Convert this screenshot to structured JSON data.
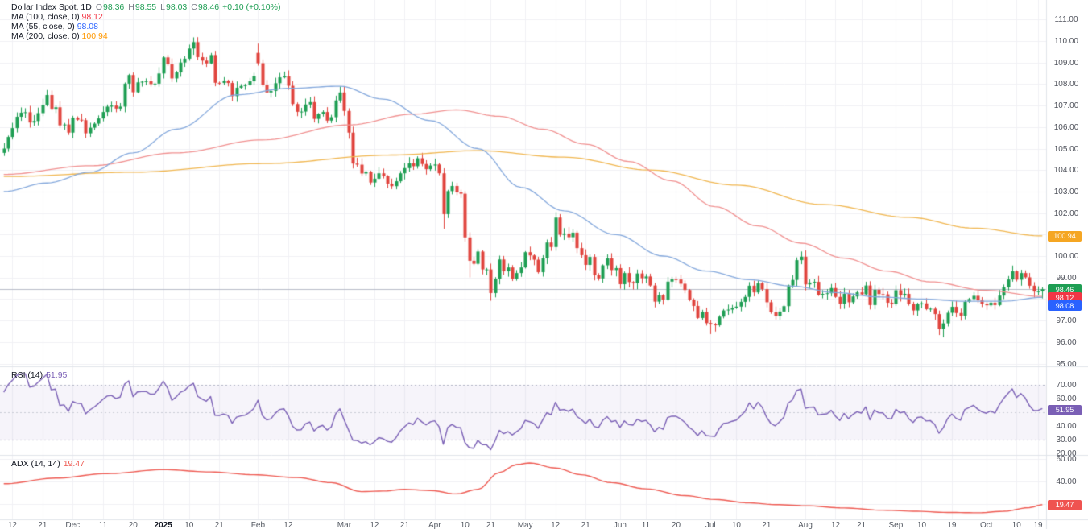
{
  "legend": {
    "title": "Dollar Index Spot, 1D",
    "ohlc": [
      [
        "O",
        "98.36"
      ],
      [
        "H",
        "98.55"
      ],
      [
        "L",
        "98.03"
      ],
      [
        "C",
        "98.46"
      ]
    ],
    "change": "+0.10 (+0.10%)",
    "ma_rows": [
      {
        "label": "MA (100, close, 0)",
        "value": "98.12",
        "color": "#f23645"
      },
      {
        "label": "MA (55, close, 0)",
        "value": "98.08",
        "color": "#2962ff"
      },
      {
        "label": "MA (200, close, 0)",
        "value": "100.94",
        "color": "#ff9800"
      }
    ]
  },
  "rsi_pane": {
    "label": "RSI (14)",
    "value": "51.95"
  },
  "adx_pane": {
    "label": "ADX (14, 14)",
    "value": "19.47"
  },
  "colors": {
    "up": "#1e9e53",
    "down": "#e0443e",
    "ma55_line": "#84a8dc",
    "ma100_line": "#f09090",
    "ma200_line": "#f0b64f",
    "rsi_line": "#7a5fb5",
    "adx_line": "#ee5a52",
    "grid": "#f0f1f5",
    "divider": "#e1e4ea",
    "band_fill": "rgba(122,95,191,0.07)",
    "band_edge": "#b0b3c4",
    "band_mid": "#c9cbd6",
    "price_line": "#b8bcc9",
    "badge_orange": "#f5a623",
    "badge_green": "#1e9e53",
    "badge_red": "#f23645",
    "badge_blue": "#2962ff",
    "badge_purple": "#7a5fb5",
    "badge_salmon": "#ef5350",
    "ohlc_text": "#1e9e53",
    "axis_text": "#50535c"
  },
  "axes": {
    "price_ticks": [
      111,
      110,
      109,
      108,
      107,
      106,
      105,
      104,
      103,
      102,
      101,
      100,
      99,
      98,
      97,
      96,
      95
    ],
    "rsi_ticks": [
      70,
      60,
      50,
      40,
      30,
      20
    ],
    "adx_ticks": [
      60,
      40,
      20
    ],
    "time_labels": [
      [
        "12",
        2
      ],
      [
        "21",
        9
      ],
      [
        "Dec",
        16
      ],
      [
        "11",
        23
      ],
      [
        "20",
        30
      ],
      [
        "2025",
        37
      ],
      [
        "10",
        43
      ],
      [
        "21",
        50
      ],
      [
        "Feb",
        59
      ],
      [
        "12",
        66
      ],
      [
        "Mar",
        79
      ],
      [
        "12",
        86
      ],
      [
        "21",
        93
      ],
      [
        "Apr",
        100
      ],
      [
        "10",
        107
      ],
      [
        "21",
        113
      ],
      [
        "May",
        121
      ],
      [
        "12",
        128
      ],
      [
        "21",
        135
      ],
      [
        "Jun",
        143
      ],
      [
        "11",
        149
      ],
      [
        "20",
        156
      ],
      [
        "Jul",
        164
      ],
      [
        "10",
        170
      ],
      [
        "21",
        177
      ],
      [
        "Aug",
        186
      ],
      [
        "12",
        193
      ],
      [
        "21",
        199
      ],
      [
        "Sep",
        207
      ],
      [
        "10",
        213
      ],
      [
        "19",
        220
      ],
      [
        "Oct",
        228
      ],
      [
        "10",
        235
      ],
      [
        "19",
        240
      ]
    ],
    "bold_time_label": "2025"
  },
  "badges": [
    {
      "pane": "main",
      "value": 100.94,
      "text": "100.94",
      "color": "#f5a623"
    },
    {
      "pane": "main",
      "value": 98.46,
      "text": "98.46",
      "color": "#1e9e53"
    },
    {
      "pane": "main",
      "value": 98.12,
      "text": "98.12",
      "color": "#f23645"
    },
    {
      "pane": "main",
      "value": 98.08,
      "text": "98.08",
      "color": "#2962ff"
    },
    {
      "pane": "rsi",
      "value": 51.95,
      "text": "51.95",
      "color": "#7a5fb5"
    },
    {
      "pane": "adx",
      "value": 19.47,
      "text": "19.47",
      "color": "#ef5350"
    }
  ],
  "chart_data": {
    "type": "candlestick",
    "symbol": "Dollar Index Spot",
    "interval": "1D",
    "last_candle": {
      "o": 98.36,
      "h": 98.55,
      "l": 98.03,
      "c": 98.46,
      "change_pct": 0.1
    },
    "price_axis_range": [
      94.87,
      111.91
    ],
    "rsi_axis_range": [
      19.4,
      82.9
    ],
    "adx_axis_range": [
      6.4,
      62.9
    ],
    "rsi_levels": {
      "overbought": 70,
      "mid": 50,
      "oversold": 30,
      "current": 51.95
    },
    "adx_current": 19.47,
    "ma_values": {
      "ma55": 98.08,
      "ma100": 98.12,
      "ma200": 100.94
    },
    "closes": [
      105.0,
      105.54,
      105.95,
      106.48,
      106.67,
      106.69,
      106.21,
      106.28,
      106.65,
      107.03,
      107.49,
      106.85,
      106.92,
      106.08,
      106.12,
      105.74,
      106.44,
      106.34,
      106.32,
      105.71,
      105.97,
      106.16,
      106.4,
      106.7,
      106.95,
      107.0,
      106.86,
      106.95,
      108.02,
      108.42,
      107.62,
      108.08,
      108.11,
      108.13,
      108.0,
      108.02,
      108.49,
      109.24,
      108.92,
      108.26,
      108.54,
      109.0,
      109.18,
      109.65,
      109.95,
      109.25,
      109.09,
      108.96,
      109.35,
      108.06,
      108.05,
      108.16,
      108.05,
      107.44,
      107.83,
      107.91,
      107.96,
      108.13,
      108.37,
      108.97,
      107.96,
      107.61,
      107.68,
      108.04,
      108.31,
      108.36,
      107.92,
      107.07,
      106.71,
      106.72,
      107.05,
      107.16,
      106.38,
      106.61,
      106.7,
      106.3,
      106.46,
      107.24,
      107.61,
      106.75,
      105.74,
      104.3,
      104.25,
      103.84,
      103.92,
      103.42,
      103.6,
      103.85,
      103.72,
      103.37,
      103.25,
      103.48,
      103.85,
      104.09,
      104.31,
      104.18,
      104.55,
      104.28,
      104.04,
      104.21,
      104.26,
      103.85,
      101.95,
      103.02,
      103.26,
      102.96,
      102.9,
      100.87,
      99.78,
      99.64,
      100.21,
      99.38,
      99.38,
      98.28,
      98.94,
      99.84,
      99.29,
      99.47,
      98.94,
      99.21,
      99.47,
      100.18,
      100.03,
      99.83,
      99.25,
      99.9,
      100.63,
      100.42,
      101.79,
      100.99,
      101.05,
      100.88,
      101.09,
      100.37,
      100.04,
      99.59,
      99.96,
      99.11,
      98.96,
      99.57,
      99.89,
      99.35,
      99.44,
      98.69,
      99.21,
      98.79,
      98.74,
      99.19,
      98.97,
      99.05,
      98.63,
      97.88,
      98.18,
      97.97,
      98.81,
      98.92,
      98.91,
      98.71,
      98.42,
      97.97,
      97.68,
      97.12,
      97.4,
      96.88,
      96.82,
      96.78,
      97.18,
      97.47,
      97.51,
      97.59,
      97.65,
      97.87,
      98.1,
      98.62,
      98.31,
      98.73,
      98.46,
      97.85,
      97.39,
      97.21,
      97.42,
      97.67,
      98.63,
      98.89,
      99.81,
      99.97,
      98.68,
      98.77,
      98.8,
      98.19,
      98.24,
      98.27,
      98.51,
      98.1,
      97.78,
      98.24,
      97.85,
      98.12,
      98.31,
      98.22,
      98.63,
      97.72,
      98.43,
      98.23,
      98.22,
      97.83,
      97.77,
      98.41,
      98.17,
      98.24,
      97.77,
      97.47,
      97.77,
      97.8,
      97.53,
      97.55,
      97.3,
      96.61,
      96.87,
      97.36,
      97.64,
      97.35,
      97.22,
      97.87,
      98.0,
      98.15,
      97.94,
      97.78,
      97.71,
      97.83,
      97.72,
      98.16,
      98.55,
      98.91,
      99.29,
      98.9,
      99.21,
      99.01,
      98.62,
      98.35,
      98.36,
      98.46
    ],
    "wick_overrides": {
      "44": {
        "h": 110.17
      },
      "59": {
        "o": 109.45,
        "h": 109.88
      },
      "102": {
        "l": 101.27
      },
      "108": {
        "l": 99.01
      },
      "113": {
        "l": 97.92
      },
      "164": {
        "l": 96.37
      },
      "186": {
        "h": 100.26
      },
      "218": {
        "l": 96.22
      },
      "234": {
        "h": 99.56
      },
      "241": {
        "o": 98.36,
        "h": 98.55,
        "l": 98.03,
        "c": 98.46
      }
    },
    "ma55_points": [
      [
        0,
        103.0
      ],
      [
        10,
        103.4
      ],
      [
        20,
        103.9
      ],
      [
        30,
        104.8
      ],
      [
        40,
        105.9
      ],
      [
        54,
        107.5
      ],
      [
        66,
        107.8
      ],
      [
        78,
        107.9
      ],
      [
        88,
        107.3
      ],
      [
        99,
        106.3
      ],
      [
        110,
        105.0
      ],
      [
        120,
        103.2
      ],
      [
        130,
        102.1
      ],
      [
        142,
        101.0
      ],
      [
        153,
        100.0
      ],
      [
        163,
        99.3
      ],
      [
        173,
        98.9
      ],
      [
        183,
        98.6
      ],
      [
        193,
        98.3
      ],
      [
        203,
        98.1
      ],
      [
        213,
        98.0
      ],
      [
        223,
        97.9
      ],
      [
        232,
        97.9
      ],
      [
        241,
        98.08
      ]
    ],
    "ma100_points": [
      [
        0,
        103.8
      ],
      [
        20,
        104.2
      ],
      [
        40,
        104.8
      ],
      [
        60,
        105.4
      ],
      [
        80,
        106.1
      ],
      [
        95,
        106.6
      ],
      [
        105,
        106.8
      ],
      [
        115,
        106.5
      ],
      [
        125,
        105.9
      ],
      [
        135,
        105.2
      ],
      [
        145,
        104.4
      ],
      [
        155,
        103.5
      ],
      [
        165,
        102.3
      ],
      [
        175,
        101.4
      ],
      [
        185,
        100.6
      ],
      [
        195,
        99.9
      ],
      [
        205,
        99.3
      ],
      [
        215,
        98.8
      ],
      [
        228,
        98.4
      ],
      [
        241,
        98.12
      ]
    ],
    "ma200_points": [
      [
        0,
        103.7
      ],
      [
        30,
        103.9
      ],
      [
        60,
        104.3
      ],
      [
        90,
        104.7
      ],
      [
        110,
        104.9
      ],
      [
        130,
        104.6
      ],
      [
        150,
        104.0
      ],
      [
        170,
        103.3
      ],
      [
        190,
        102.4
      ],
      [
        210,
        101.8
      ],
      [
        225,
        101.3
      ],
      [
        241,
        100.94
      ]
    ],
    "adx_points": [
      [
        0,
        38
      ],
      [
        12,
        43
      ],
      [
        24,
        47
      ],
      [
        37,
        50.5
      ],
      [
        48,
        48.5
      ],
      [
        58,
        46
      ],
      [
        68,
        43.5
      ],
      [
        76,
        39
      ],
      [
        83,
        31
      ],
      [
        88,
        31.5
      ],
      [
        93,
        33
      ],
      [
        99,
        32
      ],
      [
        105,
        29
      ],
      [
        110,
        33
      ],
      [
        115,
        48
      ],
      [
        119,
        55
      ],
      [
        122,
        56.5
      ],
      [
        128,
        52
      ],
      [
        134,
        46
      ],
      [
        141,
        39
      ],
      [
        149,
        33.5
      ],
      [
        158,
        27.5
      ],
      [
        165,
        24
      ],
      [
        173,
        21
      ],
      [
        179,
        19.5
      ],
      [
        186,
        18.5
      ],
      [
        195,
        16.5
      ],
      [
        204,
        14.5
      ],
      [
        212,
        13.5
      ],
      [
        219,
        12.5
      ],
      [
        226,
        12.2
      ],
      [
        232,
        13.5
      ],
      [
        238,
        16.8
      ],
      [
        241,
        19.47
      ]
    ]
  }
}
